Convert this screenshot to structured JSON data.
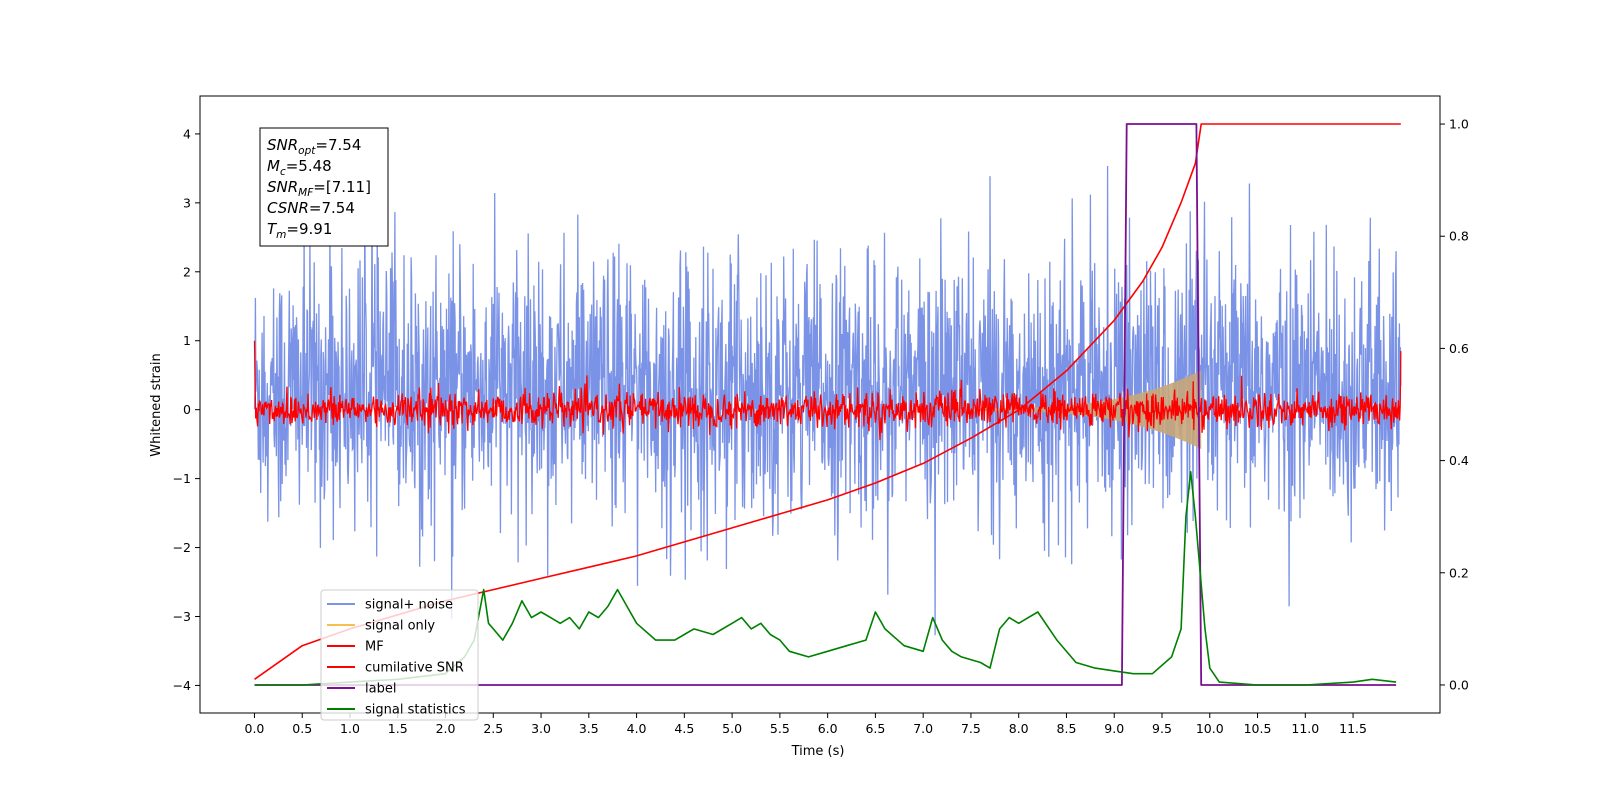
{
  "chart_data": {
    "type": "line",
    "xlabel": "Time (s)",
    "ylabel": "Whitened strain",
    "xlim": [
      -0.57,
      12.41
    ],
    "ylim": [
      -4.4,
      4.55
    ],
    "y2lim": [
      -0.05,
      1.05
    ],
    "x_ticks": [
      0.0,
      0.5,
      1.0,
      1.5,
      2.0,
      2.5,
      3.0,
      3.5,
      4.0,
      4.5,
      5.0,
      5.5,
      6.0,
      6.5,
      7.0,
      7.5,
      8.0,
      8.5,
      9.0,
      9.5,
      10.0,
      10.5,
      11.0,
      11.5
    ],
    "x_tick_labels": [
      "0.0",
      "0.5",
      "1.0",
      "1.5",
      "2.0",
      "2.5",
      "3.0",
      "3.5",
      "4.0",
      "4.5",
      "5.0",
      "5.5",
      "6.0",
      "6.5",
      "7.0",
      "7.5",
      "8.0",
      "8.5",
      "9.0",
      "9.5",
      "10.0",
      "10.5",
      "11.0",
      "11.5"
    ],
    "y_ticks": [
      4,
      3,
      2,
      1,
      0,
      -1,
      -2,
      -3,
      -4
    ],
    "y_tick_labels": [
      "4",
      "3",
      "2",
      "1",
      "0",
      "−1",
      "−2",
      "−3",
      "−4"
    ],
    "y2_ticks": [
      1.0,
      0.8,
      0.6,
      0.4,
      0.2,
      0.0
    ],
    "y2_tick_labels": [
      "1.0",
      "0.8",
      "0.6",
      "0.4",
      "0.2",
      "0.0"
    ],
    "grid": false,
    "legend_position": "lower-left",
    "annotation": {
      "position": "top-left",
      "lines": [
        {
          "base": "SNR",
          "sub": "opt",
          "value": "=7.54"
        },
        {
          "base": "M",
          "sub": "c",
          "value": "=5.48"
        },
        {
          "base": "SNR",
          "sub": "MF",
          "value": "=[7.11]"
        },
        {
          "base": "CSNR",
          "sub": "",
          "value": "=7.54"
        },
        {
          "base": "T",
          "sub": "m",
          "value": "=9.91"
        }
      ]
    },
    "series": [
      {
        "name": "signal+ noise",
        "color": "#7b93e6",
        "axis": "left",
        "style": "noise",
        "amplitude_range": [
          -3.6,
          4.15
        ],
        "typical_std": 1.0,
        "x_range": [
          0.0,
          12.0
        ]
      },
      {
        "name": "signal only",
        "color": "#f5c04f",
        "axis": "left",
        "style": "chirp",
        "fill_color": "#c8a77a",
        "x_range": [
          7.5,
          9.91
        ],
        "peak_amplitude": 0.55
      },
      {
        "name": "MF",
        "color": "#ff0000",
        "axis": "left",
        "style": "noise",
        "typical_std": 0.13,
        "x_range": [
          0.0,
          12.0
        ],
        "edge_values": [
          1.0,
          0.85
        ]
      },
      {
        "name": "cumilative SNR",
        "color": "#ff0000",
        "axis": "right",
        "x": [
          0.0,
          0.5,
          1.0,
          1.5,
          2.0,
          2.5,
          3.0,
          3.5,
          4.0,
          4.5,
          5.0,
          5.5,
          6.0,
          6.5,
          7.0,
          7.5,
          8.0,
          8.5,
          9.0,
          9.3,
          9.5,
          9.7,
          9.85,
          9.91,
          12.0
        ],
        "values": [
          0.01,
          0.07,
          0.1,
          0.125,
          0.15,
          0.17,
          0.19,
          0.21,
          0.23,
          0.255,
          0.28,
          0.305,
          0.33,
          0.36,
          0.395,
          0.44,
          0.49,
          0.56,
          0.65,
          0.72,
          0.78,
          0.86,
          0.93,
          1.0,
          1.0
        ]
      },
      {
        "name": "label",
        "color": "#7a0f8f",
        "axis": "right",
        "x": [
          0.0,
          9.08,
          9.13,
          9.86,
          9.91,
          11.95
        ],
        "values": [
          0.0,
          0.0,
          1.0,
          1.0,
          0.0,
          0.0
        ]
      },
      {
        "name": "signal statistics",
        "color": "#008000",
        "axis": "right",
        "x": [
          0.0,
          0.5,
          1.0,
          1.5,
          2.0,
          2.2,
          2.3,
          2.4,
          2.45,
          2.5,
          2.6,
          2.7,
          2.8,
          2.9,
          3.0,
          3.1,
          3.2,
          3.3,
          3.4,
          3.5,
          3.6,
          3.7,
          3.8,
          3.9,
          4.0,
          4.2,
          4.4,
          4.5,
          4.6,
          4.8,
          5.0,
          5.1,
          5.2,
          5.3,
          5.4,
          5.5,
          5.6,
          5.8,
          6.0,
          6.2,
          6.4,
          6.5,
          6.6,
          6.8,
          7.0,
          7.1,
          7.2,
          7.3,
          7.4,
          7.6,
          7.7,
          7.8,
          7.9,
          8.0,
          8.1,
          8.2,
          8.4,
          8.6,
          8.8,
          9.0,
          9.2,
          9.4,
          9.6,
          9.7,
          9.75,
          9.8,
          9.85,
          9.9,
          9.95,
          10.0,
          10.1,
          10.5,
          11.0,
          11.5,
          11.7,
          11.95
        ],
        "values": [
          0.0,
          0.0,
          0.005,
          0.01,
          0.02,
          0.05,
          0.08,
          0.17,
          0.11,
          0.1,
          0.08,
          0.11,
          0.15,
          0.12,
          0.13,
          0.12,
          0.11,
          0.12,
          0.1,
          0.13,
          0.12,
          0.14,
          0.17,
          0.14,
          0.11,
          0.08,
          0.08,
          0.09,
          0.1,
          0.09,
          0.11,
          0.12,
          0.1,
          0.11,
          0.09,
          0.08,
          0.06,
          0.05,
          0.06,
          0.07,
          0.08,
          0.13,
          0.1,
          0.07,
          0.06,
          0.12,
          0.08,
          0.06,
          0.05,
          0.04,
          0.03,
          0.1,
          0.12,
          0.11,
          0.12,
          0.13,
          0.08,
          0.04,
          0.03,
          0.025,
          0.02,
          0.02,
          0.05,
          0.1,
          0.3,
          0.38,
          0.3,
          0.2,
          0.1,
          0.03,
          0.005,
          0.0,
          0.0,
          0.005,
          0.01,
          0.005
        ]
      }
    ]
  }
}
